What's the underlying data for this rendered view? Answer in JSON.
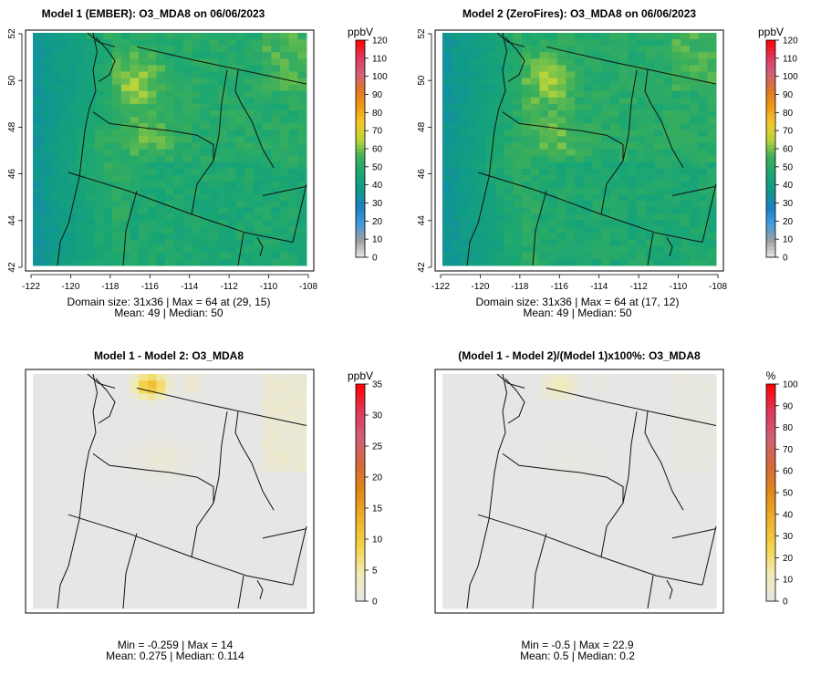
{
  "panels": [
    {
      "title": "Model 1 (EMBER): O3_MDA8 on 06/06/2023",
      "unit": "ppbV",
      "kind": "ozone",
      "colorbar_ticks": [
        "120",
        "110",
        "100",
        "90",
        "80",
        "70",
        "60",
        "50",
        "40",
        "30",
        "20",
        "10",
        "0"
      ],
      "colorbar_range": [
        0,
        120
      ],
      "x_ticks": [
        "-122",
        "-120",
        "-118",
        "-116",
        "-114",
        "-112",
        "-110",
        "-108"
      ],
      "y_ticks": [
        "52",
        "50",
        "48",
        "46",
        "44",
        "42"
      ],
      "stats_line1": "Domain size: 31x36 | Max = 64 at (29, 15)",
      "stats_line2": "Mean: 49 |  Median: 50"
    },
    {
      "title": "Model 2 (ZeroFires): O3_MDA8 on 06/06/2023",
      "unit": "ppbV",
      "kind": "ozone",
      "colorbar_ticks": [
        "120",
        "110",
        "100",
        "90",
        "80",
        "70",
        "60",
        "50",
        "40",
        "30",
        "20",
        "10",
        "0"
      ],
      "colorbar_range": [
        0,
        120
      ],
      "x_ticks": [
        "-122",
        "-120",
        "-118",
        "-116",
        "-114",
        "-112",
        "-110",
        "-108"
      ],
      "y_ticks": [
        "52",
        "50",
        "48",
        "46",
        "44",
        "42"
      ],
      "stats_line1": "Domain size: 31x36 | Max = 64 at (17, 12)",
      "stats_line2": "Mean: 49 |  Median: 50"
    },
    {
      "title": "Model 1 - Model 2: O3_MDA8",
      "unit": "ppbV",
      "kind": "diff",
      "colorbar_ticks": [
        "35",
        "30",
        "25",
        "20",
        "15",
        "10",
        "5",
        "0"
      ],
      "colorbar_range": [
        0,
        35
      ],
      "x_ticks": [],
      "y_ticks": [],
      "stats_line1": "Min = -0.259 | Max = 14",
      "stats_line2": "Mean: 0.275 |  Median: 0.114"
    },
    {
      "title": "(Model 1 - Model 2)/(Model 1)x100%: O3_MDA8",
      "unit": "%",
      "kind": "pct",
      "colorbar_ticks": [
        "100",
        "90",
        "80",
        "70",
        "60",
        "50",
        "40",
        "30",
        "20",
        "10",
        "0"
      ],
      "colorbar_range": [
        0,
        100
      ],
      "x_ticks": [],
      "y_ticks": [],
      "stats_line1": "Min = -0.5 | Max = 22.9",
      "stats_line2": "Mean: 0.5 |  Median: 0.2"
    }
  ],
  "colors": {
    "ozone_scale": [
      "#e6e6e6",
      "#9e9e9e",
      "#3f9de0",
      "#1c7fbf",
      "#0f9a8a",
      "#1aa673",
      "#3daf5a",
      "#b7d43a",
      "#f4c92b",
      "#ef9a15",
      "#e07828",
      "#d1607a",
      "#e0365a",
      "#ff0000"
    ],
    "diff_scale": [
      "#e6e6e6",
      "#f2ecb5",
      "#f4d447",
      "#f0b12b",
      "#e08a17",
      "#d6693a",
      "#cf6076",
      "#e0365a",
      "#ff0000"
    ]
  }
}
